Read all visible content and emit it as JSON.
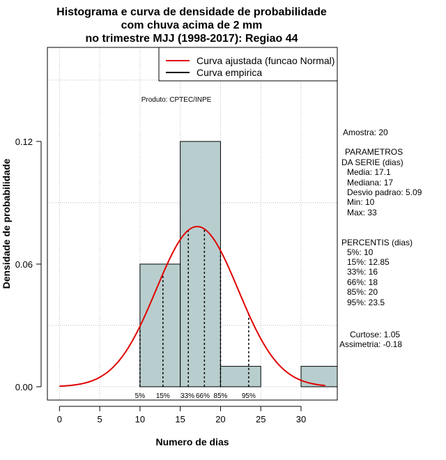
{
  "chart_data": {
    "type": "bar",
    "title_lines": [
      "Histograma e curva de densidade de probabilidade",
      "com chuva acima de 2 mm",
      "no trimestre MJJ (1998-2017): Regiao 44"
    ],
    "xlabel": "Numero de dias",
    "ylabel": "Densidade de probabilidade",
    "xlim": [
      -1.5,
      34.5
    ],
    "ylim": [
      -0.0065,
      0.166
    ],
    "x_ticks": [
      0,
      5,
      10,
      15,
      20,
      25,
      30
    ],
    "y_ticks": [
      0.0,
      0.06,
      0.12
    ],
    "y_tick_labels": [
      "0.00",
      "0.06",
      "0.12"
    ],
    "bins": [
      {
        "x0": 10,
        "x1": 15,
        "density": 0.06
      },
      {
        "x0": 15,
        "x1": 20,
        "density": 0.12
      },
      {
        "x0": 20,
        "x1": 25,
        "density": 0.01
      },
      {
        "x0": 30,
        "x1": 35,
        "density": 0.01
      }
    ],
    "bar_color": "#b8cece",
    "normal_fit": {
      "mean": 17.1,
      "sd": 5.09,
      "from": 0,
      "to": 33,
      "color": "#e00000"
    },
    "percentiles": [
      {
        "label": "5%",
        "value": 10
      },
      {
        "label": "15%",
        "value": 12.85
      },
      {
        "label": "33%",
        "value": 16
      },
      {
        "label": "66%",
        "value": 18
      },
      {
        "label": "85%",
        "value": 20
      },
      {
        "label": "95%",
        "value": 23.5
      }
    ],
    "percentile_labels": [
      {
        "text": "5%",
        "x": 10
      },
      {
        "text": "15%",
        "x": 12.85
      },
      {
        "text": "33%",
        "x": 15.9
      },
      {
        "text": "66%",
        "x": 17.8
      },
      {
        "text": "85%",
        "x": 20
      },
      {
        "text": "95%",
        "x": 23.5
      }
    ],
    "legend": [
      {
        "label": "Curva ajustada (funcao Normal)",
        "color": "#e00000"
      },
      {
        "label": "Curva empirica",
        "color": "#000000"
      }
    ],
    "source_note": "Produto: CPTEC/INPE"
  },
  "side_panel": {
    "sample": "Amostra: 20",
    "params_title": [
      "PARAMETROS",
      "DA SERIE (dias)"
    ],
    "params": [
      "Media: 17.1",
      "Mediana: 17",
      "Desvio padrao: 5.09",
      "Min: 10",
      "Max: 33"
    ],
    "percentis_title": "PERCENTIS (dias)",
    "percentis": [
      "5%: 10",
      "15%: 12.85",
      "33%: 16",
      "66%: 18",
      "85%: 20",
      "95%: 23.5"
    ],
    "curtose": "Curtose: 1.05",
    "assimetria": "Assimetria: -0.18"
  }
}
